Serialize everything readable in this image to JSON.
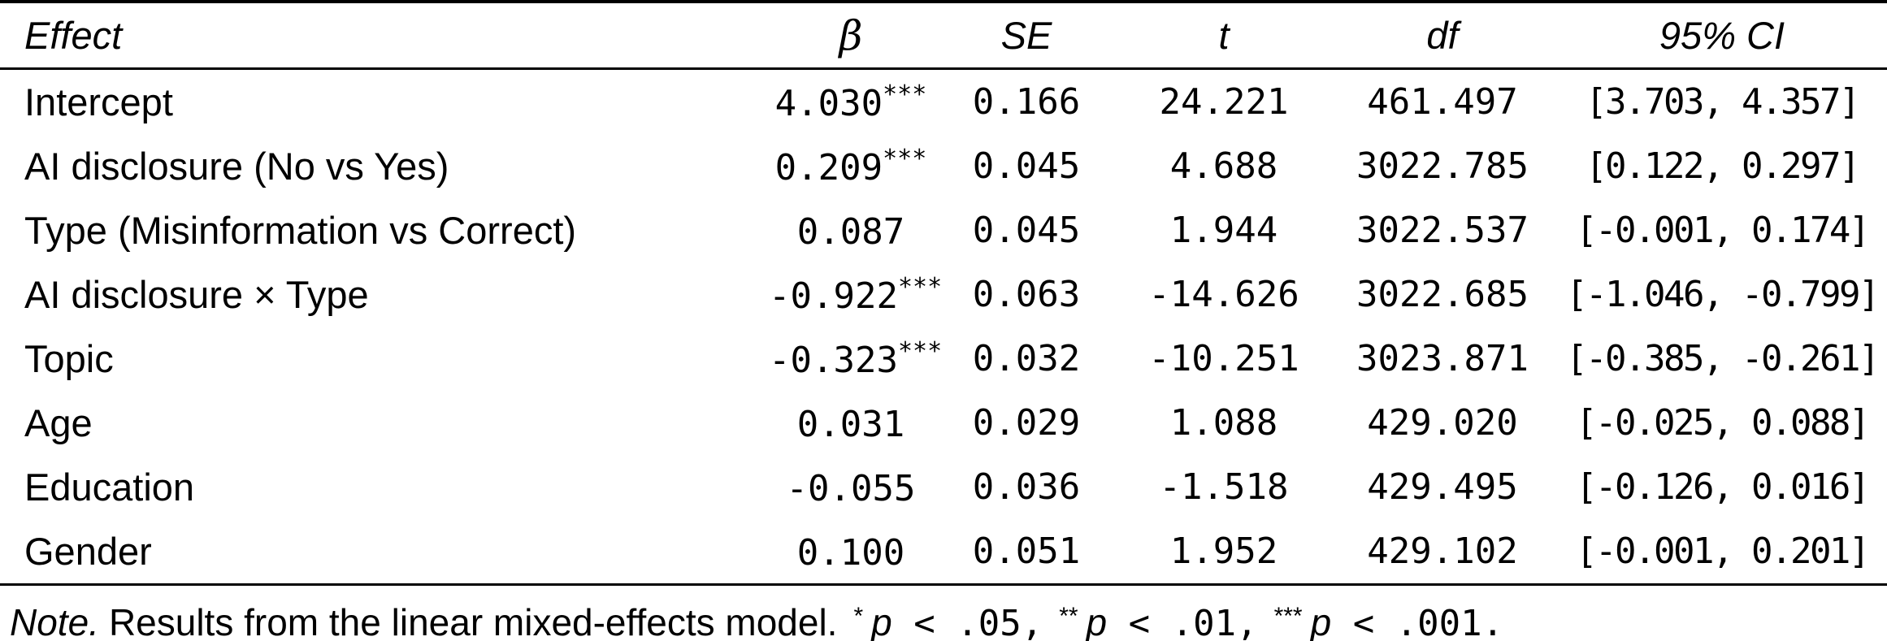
{
  "colors": {
    "background": "#ffffff",
    "text": "#000000",
    "rules": "#000000"
  },
  "table": {
    "columns": [
      {
        "key": "effect",
        "label": "Effect"
      },
      {
        "key": "beta",
        "label": "β"
      },
      {
        "key": "se",
        "label": "SE"
      },
      {
        "key": "t",
        "label": "t"
      },
      {
        "key": "df",
        "label": "df"
      },
      {
        "key": "ci",
        "label": "95% CI"
      }
    ],
    "rows": [
      {
        "effect": "Intercept",
        "beta": "4.030",
        "stars": "***",
        "se": "0.166",
        "t": "24.221",
        "df": "461.497",
        "ci": "[3.703, 4.357]"
      },
      {
        "effect": "AI disclosure (No vs Yes)",
        "beta": "0.209",
        "stars": "***",
        "se": "0.045",
        "t": "4.688",
        "df": "3022.785",
        "ci": "[0.122, 0.297]"
      },
      {
        "effect": "Type (Misinformation vs Correct)",
        "beta": "0.087",
        "stars": "",
        "se": "0.045",
        "t": "1.944",
        "df": "3022.537",
        "ci": "[-0.001, 0.174]"
      },
      {
        "effect": "AI disclosure × Type",
        "beta": "-0.922",
        "stars": "***",
        "se": "0.063",
        "t": "-14.626",
        "df": "3022.685",
        "ci": "[-1.046, -0.799]"
      },
      {
        "effect": "Topic",
        "beta": "-0.323",
        "stars": "***",
        "se": "0.032",
        "t": "-10.251",
        "df": "3023.871",
        "ci": "[-0.385, -0.261]"
      },
      {
        "effect": "Age",
        "beta": "0.031",
        "stars": "",
        "se": "0.029",
        "t": "1.088",
        "df": "429.020",
        "ci": "[-0.025, 0.088]"
      },
      {
        "effect": "Education",
        "beta": "-0.055",
        "stars": "",
        "se": "0.036",
        "t": "-1.518",
        "df": "429.495",
        "ci": "[-0.126, 0.016]"
      },
      {
        "effect": "Gender",
        "beta": "0.100",
        "stars": "",
        "se": "0.051",
        "t": "1.952",
        "df": "429.102",
        "ci": "[-0.001, 0.201]"
      }
    ]
  },
  "note": {
    "label": "Note.",
    "body": "Results from the linear mixed-effects model.",
    "sig_levels": [
      {
        "stars": "*",
        "p": "p",
        "threshold": " < .05,"
      },
      {
        "stars": "**",
        "p": "p",
        "threshold": " < .01,"
      },
      {
        "stars": "***",
        "p": "p",
        "threshold": " < .001."
      }
    ]
  }
}
